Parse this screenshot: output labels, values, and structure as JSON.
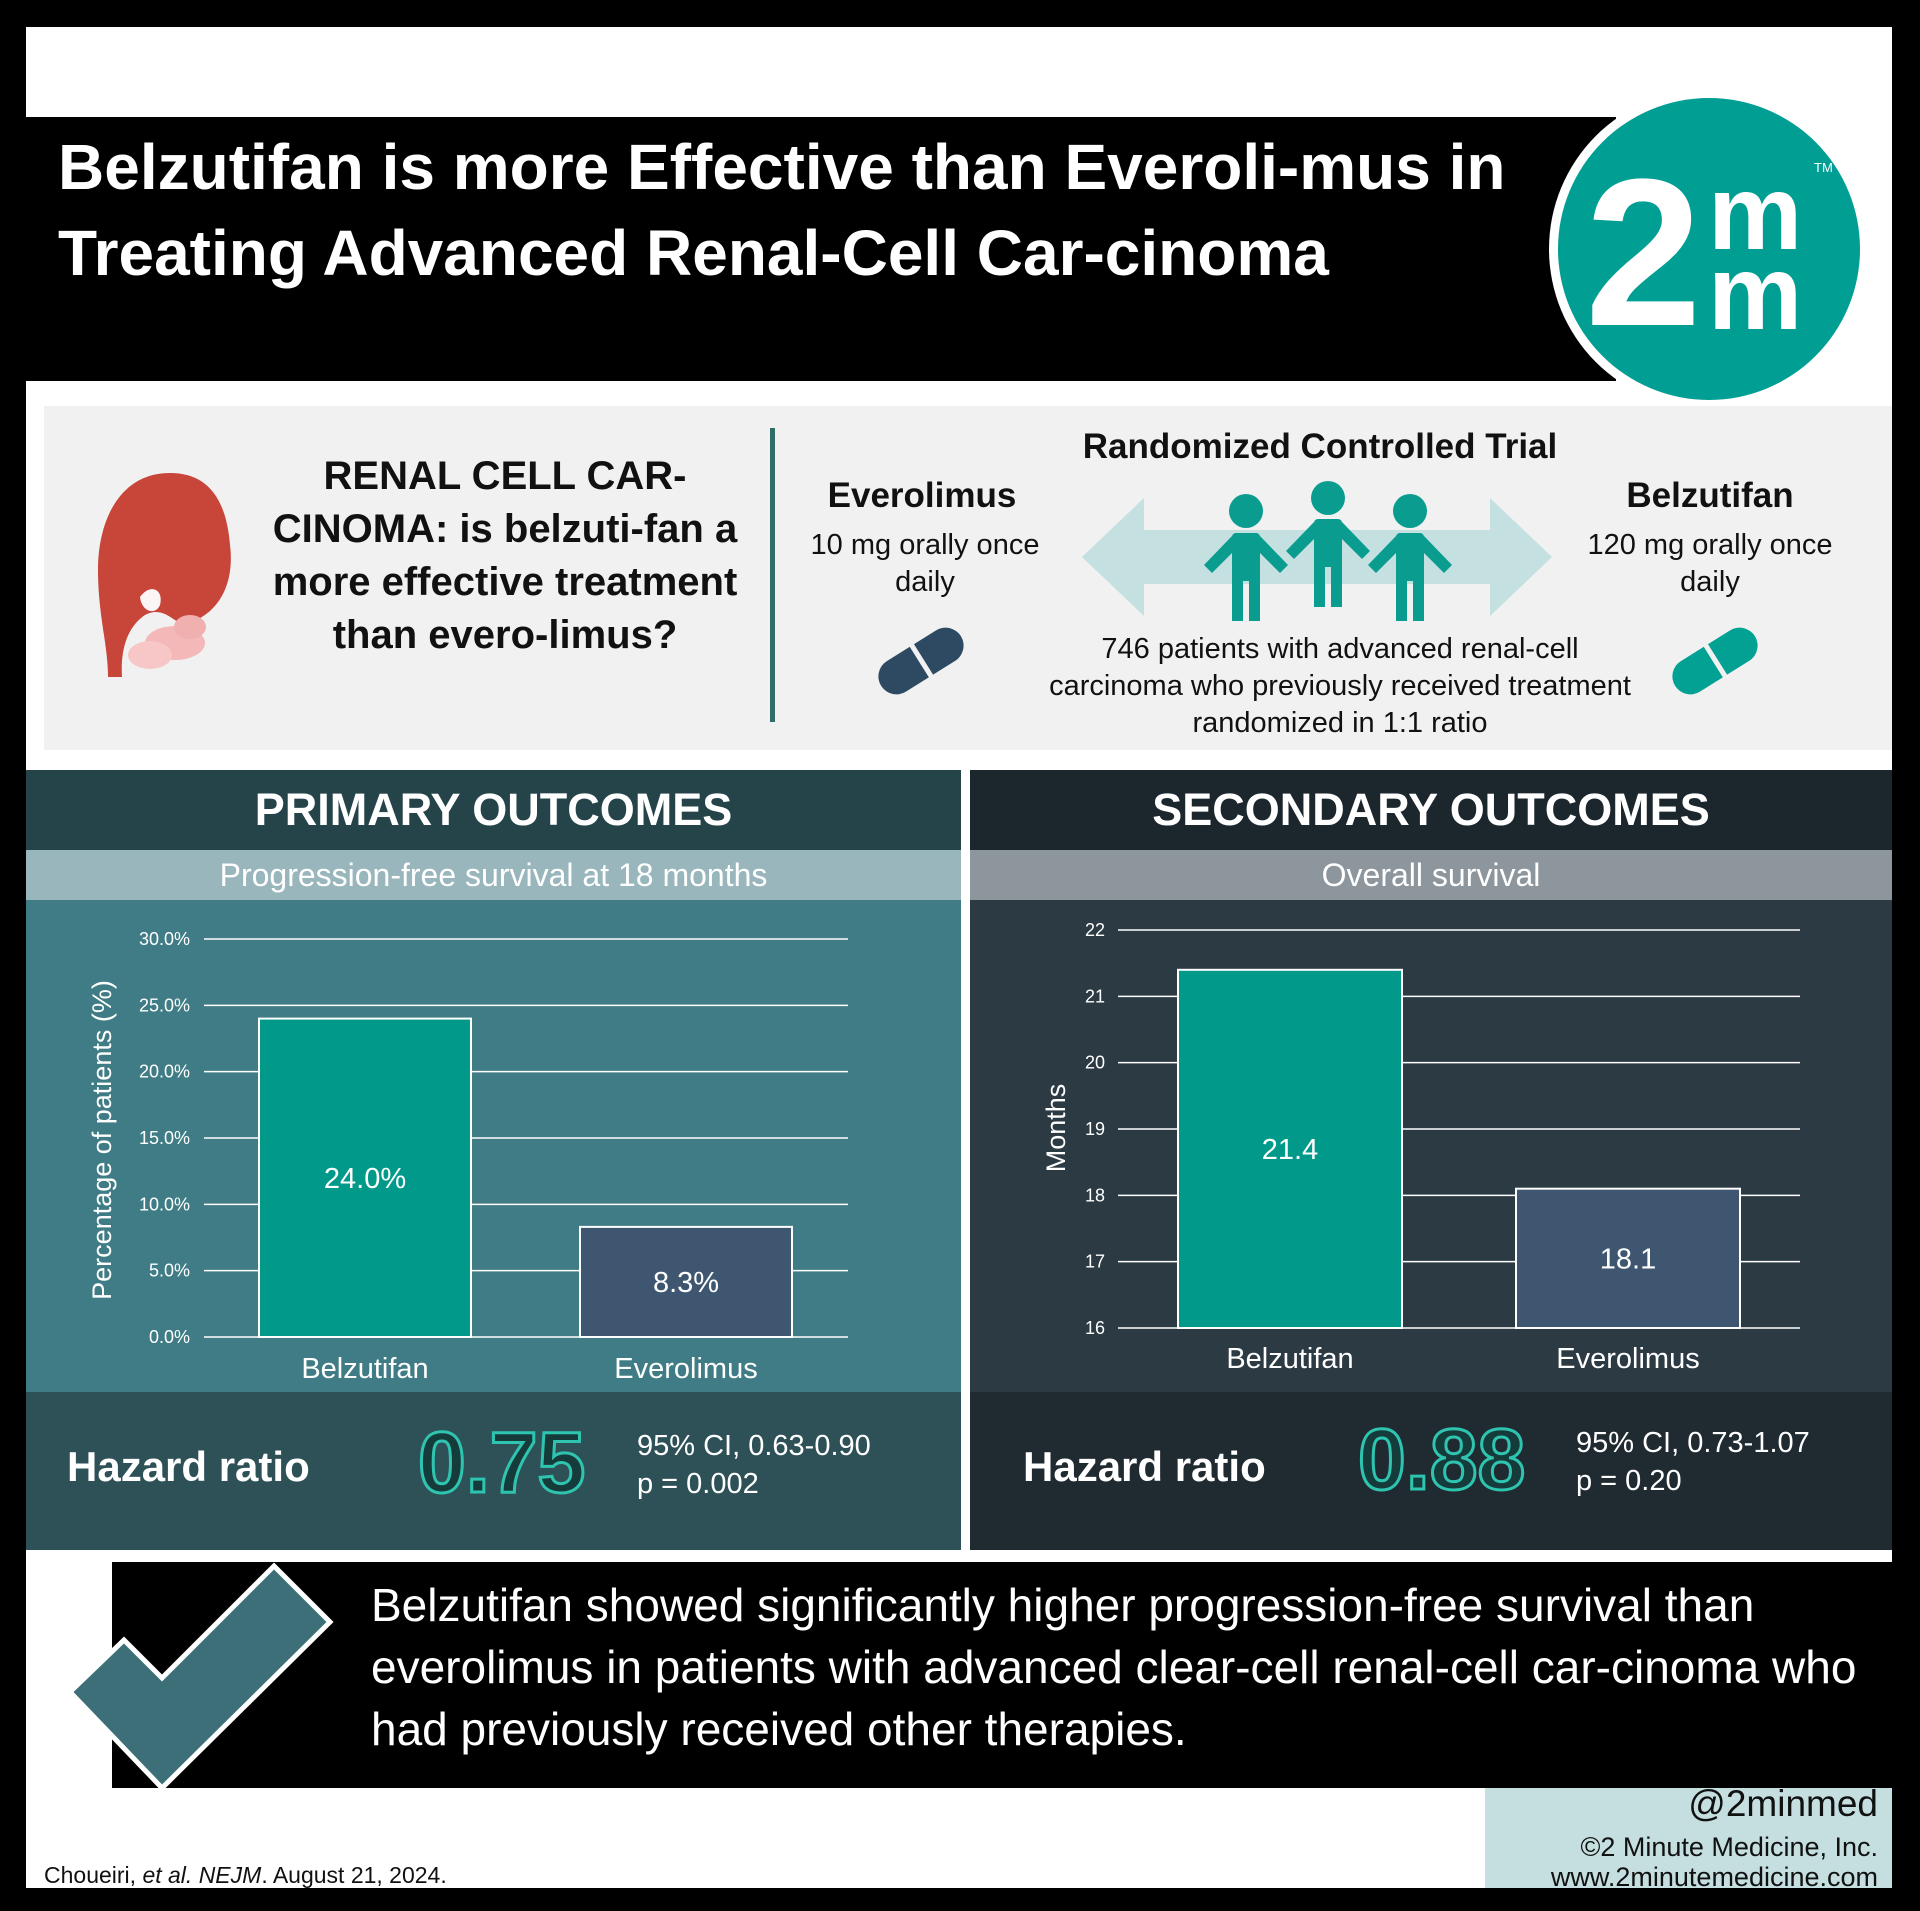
{
  "header": {
    "title": "Belzutifan is more Effective than Everoli-mus in Treating Advanced Renal-Cell Car-cinoma",
    "logo_digit": "2",
    "logo_letter_top": "m",
    "logo_letter_bottom": "m",
    "logo_tm": "TM"
  },
  "intro": {
    "question": "RENAL CELL CAR-CINOMA: is belzuti-fan a more effective treatment than evero-limus?",
    "rct_title": "Randomized Controlled Trial",
    "left_arm": {
      "name": "Everolimus",
      "dose": "10 mg orally once daily",
      "pill_color": "#2e4a63"
    },
    "right_arm": {
      "name": "Belzutifan",
      "dose": "120 mg orally once daily",
      "pill_color": "#03a193"
    },
    "description": "746 patients with advanced renal-cell carcinoma who previously received treatment randomized in 1:1 ratio",
    "icons": [
      "kidney-icon",
      "double-arrow-icon",
      "people-group-icon",
      "pill-icon"
    ]
  },
  "primary": {
    "heading": "PRIMARY OUTCOMES",
    "subheading": "Progression-free survival at 18 months",
    "hazard_label": "Hazard ratio",
    "hazard_value": "0.75",
    "ci": "95% CI, 0.63-0.90",
    "p": "p = 0.002"
  },
  "secondary": {
    "heading": "SECONDARY OUTCOMES",
    "subheading": "Overall survival",
    "hazard_label": "Hazard ratio",
    "hazard_value": "0.88",
    "ci": "95% CI, 0.73-1.07",
    "p": "p = 0.20"
  },
  "chart_data": [
    {
      "type": "bar",
      "title": "Progression-free survival at 18 months",
      "categories": [
        "Belzutifan",
        "Everolimus"
      ],
      "values": [
        24.0,
        8.3
      ],
      "value_labels": [
        "24.0%",
        "8.3%"
      ],
      "ylabel": "Percentage of patients (%)",
      "yticks": [
        "0.0%",
        "5.0%",
        "10.0%",
        "15.0%",
        "20.0%",
        "25.0%",
        "30.0%"
      ],
      "ylim": [
        0,
        30
      ],
      "grid": true,
      "colors": [
        "#00998a",
        "#3f5670"
      ]
    },
    {
      "type": "bar",
      "title": "Overall survival",
      "categories": [
        "Belzutifan",
        "Everolimus"
      ],
      "values": [
        21.4,
        18.1
      ],
      "value_labels": [
        "21.4",
        "18.1"
      ],
      "ylabel": "Months",
      "yticks": [
        "16",
        "17",
        "18",
        "19",
        "20",
        "21",
        "22"
      ],
      "ylim": [
        16,
        22
      ],
      "grid": true,
      "colors": [
        "#00998a",
        "#3f5670"
      ]
    }
  ],
  "conclusion": {
    "text": "Belzutifan showed significantly higher progression-free survival than everolimus in patients with advanced clear-cell renal-cell car-cinoma who had previously received other therapies."
  },
  "footer": {
    "handle": "@2minmed",
    "copyright": "©2 Minute Medicine, Inc.",
    "website": "www.2minutemedicine.com",
    "citation_authors": "Choueiri, ",
    "citation_etal": "et al. NEJM",
    "citation_date": ". August 21, 2024."
  },
  "colors": {
    "teal": "#009e93",
    "primary_header": "#25444a",
    "primary_chart": "#3f7c85",
    "secondary_header": "#1c262d",
    "secondary_chart": "#2c3a44"
  }
}
